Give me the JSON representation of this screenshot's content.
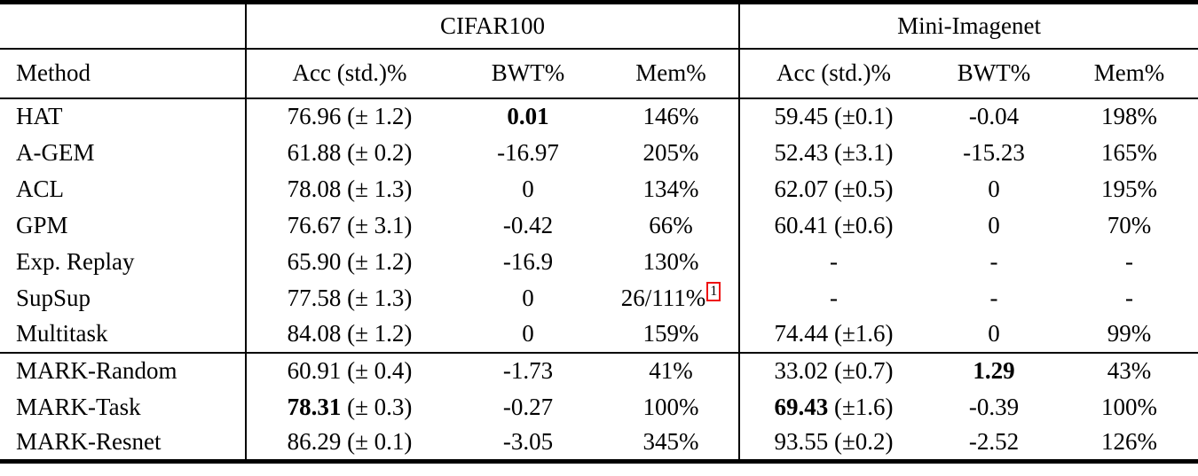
{
  "page": {
    "background": "#ffffff",
    "text_color": "#000000",
    "rule_color": "#000000",
    "footnote_box_color": "#ee1111"
  },
  "table": {
    "group_headers": [
      {
        "label": "",
        "span": 1
      },
      {
        "label": "CIFAR100",
        "span": 3
      },
      {
        "label": "Mini-Imagenet",
        "span": 3
      }
    ],
    "column_headers": [
      "Method",
      "Acc (std.)%",
      "BWT%",
      "Mem%",
      "Acc (std.)%",
      "BWT%",
      "Mem%"
    ],
    "sections": [
      {
        "name": "baselines",
        "rows": [
          {
            "method": "HAT",
            "cells": [
              {
                "text": "76.96 (± 1.2)"
              },
              {
                "text": "0.01",
                "bold": true
              },
              {
                "text": "146%"
              },
              {
                "text": "59.45 (±0.1)"
              },
              {
                "text": "-0.04"
              },
              {
                "text": "198%"
              }
            ]
          },
          {
            "method": "A-GEM",
            "cells": [
              {
                "text": "61.88 (± 0.2)"
              },
              {
                "text": "-16.97"
              },
              {
                "text": "205%"
              },
              {
                "text": "52.43 (±3.1)"
              },
              {
                "text": "-15.23"
              },
              {
                "text": "165%"
              }
            ]
          },
          {
            "method": "ACL",
            "cells": [
              {
                "text": "78.08 (± 1.3)"
              },
              {
                "text": "0"
              },
              {
                "text": "134%"
              },
              {
                "text": "62.07 (±0.5)"
              },
              {
                "text": "0"
              },
              {
                "text": "195%"
              }
            ]
          },
          {
            "method": "GPM",
            "cells": [
              {
                "text": "76.67 (± 3.1)"
              },
              {
                "text": "-0.42"
              },
              {
                "text": "66%"
              },
              {
                "text": "60.41 (±0.6)"
              },
              {
                "text": "0"
              },
              {
                "text": "70%"
              }
            ]
          },
          {
            "method": "Exp. Replay",
            "cells": [
              {
                "text": "65.90 (± 1.2)"
              },
              {
                "text": "-16.9"
              },
              {
                "text": "130%"
              },
              {
                "text": "-"
              },
              {
                "text": "-"
              },
              {
                "text": "-"
              }
            ]
          },
          {
            "method": "SupSup",
            "cells": [
              {
                "text": "77.58 (± 1.3)"
              },
              {
                "text": "0"
              },
              {
                "text": "26/111%",
                "sup": "1"
              },
              {
                "text": "-"
              },
              {
                "text": "-"
              },
              {
                "text": "-"
              }
            ]
          },
          {
            "method": "Multitask",
            "cells": [
              {
                "text": "84.08 (± 1.2)"
              },
              {
                "text": "0"
              },
              {
                "text": "159%"
              },
              {
                "text": "74.44 (±1.6)"
              },
              {
                "text": "0"
              },
              {
                "text": "99%"
              }
            ]
          }
        ]
      },
      {
        "name": "mark-variants",
        "rows": [
          {
            "method": "MARK-Random",
            "cells": [
              {
                "text": "60.91 (± 0.4)"
              },
              {
                "text": "-1.73"
              },
              {
                "text": "41%"
              },
              {
                "text": "33.02 (±0.7)"
              },
              {
                "text": "1.29",
                "bold": true
              },
              {
                "text": "43%"
              }
            ]
          },
          {
            "method": "MARK-Task",
            "cells": [
              {
                "bold_text": "78.31",
                "text": " (± 0.3)"
              },
              {
                "text": "-0.27"
              },
              {
                "text": "100%"
              },
              {
                "bold_text": "69.43",
                "text": " (±1.6)"
              },
              {
                "text": "-0.39"
              },
              {
                "text": "100%"
              }
            ]
          },
          {
            "method": "MARK-Resnet",
            "cells": [
              {
                "text": "86.29 (± 0.1)"
              },
              {
                "text": "-3.05"
              },
              {
                "text": "345%"
              },
              {
                "text": "93.55 (±0.2)"
              },
              {
                "text": "-2.52"
              },
              {
                "text": "126%"
              }
            ]
          }
        ]
      }
    ]
  }
}
